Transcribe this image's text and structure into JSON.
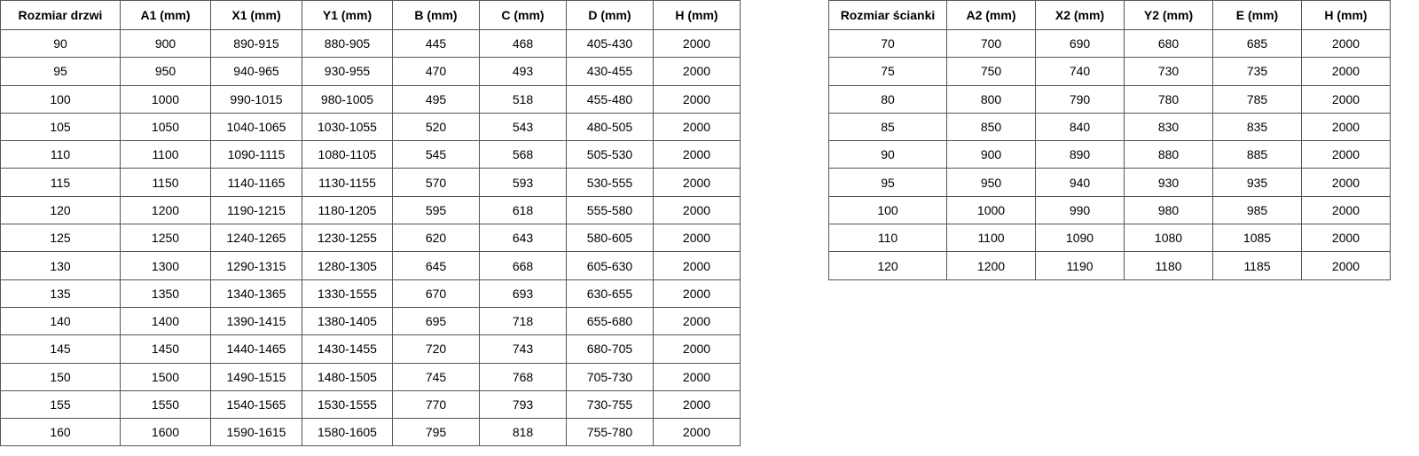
{
  "doors_table": {
    "headers": [
      "Rozmiar drzwi",
      "A1 (mm)",
      "X1 (mm)",
      "Y1 (mm)",
      "B (mm)",
      "C (mm)",
      "D (mm)",
      "H (mm)"
    ],
    "rows": [
      [
        "90",
        "900",
        "890-915",
        "880-905",
        "445",
        "468",
        "405-430",
        "2000"
      ],
      [
        "95",
        "950",
        "940-965",
        "930-955",
        "470",
        "493",
        "430-455",
        "2000"
      ],
      [
        "100",
        "1000",
        "990-1015",
        "980-1005",
        "495",
        "518",
        "455-480",
        "2000"
      ],
      [
        "105",
        "1050",
        "1040-1065",
        "1030-1055",
        "520",
        "543",
        "480-505",
        "2000"
      ],
      [
        "110",
        "1100",
        "1090-1115",
        "1080-1105",
        "545",
        "568",
        "505-530",
        "2000"
      ],
      [
        "115",
        "1150",
        "1140-1165",
        "1130-1155",
        "570",
        "593",
        "530-555",
        "2000"
      ],
      [
        "120",
        "1200",
        "1190-1215",
        "1180-1205",
        "595",
        "618",
        "555-580",
        "2000"
      ],
      [
        "125",
        "1250",
        "1240-1265",
        "1230-1255",
        "620",
        "643",
        "580-605",
        "2000"
      ],
      [
        "130",
        "1300",
        "1290-1315",
        "1280-1305",
        "645",
        "668",
        "605-630",
        "2000"
      ],
      [
        "135",
        "1350",
        "1340-1365",
        "1330-1555",
        "670",
        "693",
        "630-655",
        "2000"
      ],
      [
        "140",
        "1400",
        "1390-1415",
        "1380-1405",
        "695",
        "718",
        "655-680",
        "2000"
      ],
      [
        "145",
        "1450",
        "1440-1465",
        "1430-1455",
        "720",
        "743",
        "680-705",
        "2000"
      ],
      [
        "150",
        "1500",
        "1490-1515",
        "1480-1505",
        "745",
        "768",
        "705-730",
        "2000"
      ],
      [
        "155",
        "1550",
        "1540-1565",
        "1530-1555",
        "770",
        "793",
        "730-755",
        "2000"
      ],
      [
        "160",
        "1600",
        "1590-1615",
        "1580-1605",
        "795",
        "818",
        "755-780",
        "2000"
      ]
    ]
  },
  "wall_table": {
    "headers": [
      "Rozmiar ścianki",
      "A2 (mm)",
      "X2 (mm)",
      "Y2 (mm)",
      "E (mm)",
      "H (mm)"
    ],
    "rows": [
      [
        "70",
        "700",
        "690",
        "680",
        "685",
        "2000"
      ],
      [
        "75",
        "750",
        "740",
        "730",
        "735",
        "2000"
      ],
      [
        "80",
        "800",
        "790",
        "780",
        "785",
        "2000"
      ],
      [
        "85",
        "850",
        "840",
        "830",
        "835",
        "2000"
      ],
      [
        "90",
        "900",
        "890",
        "880",
        "885",
        "2000"
      ],
      [
        "95",
        "950",
        "940",
        "930",
        "935",
        "2000"
      ],
      [
        "100",
        "1000",
        "990",
        "980",
        "985",
        "2000"
      ],
      [
        "110",
        "1100",
        "1090",
        "1080",
        "1085",
        "2000"
      ],
      [
        "120",
        "1200",
        "1190",
        "1180",
        "1185",
        "2000"
      ]
    ]
  }
}
